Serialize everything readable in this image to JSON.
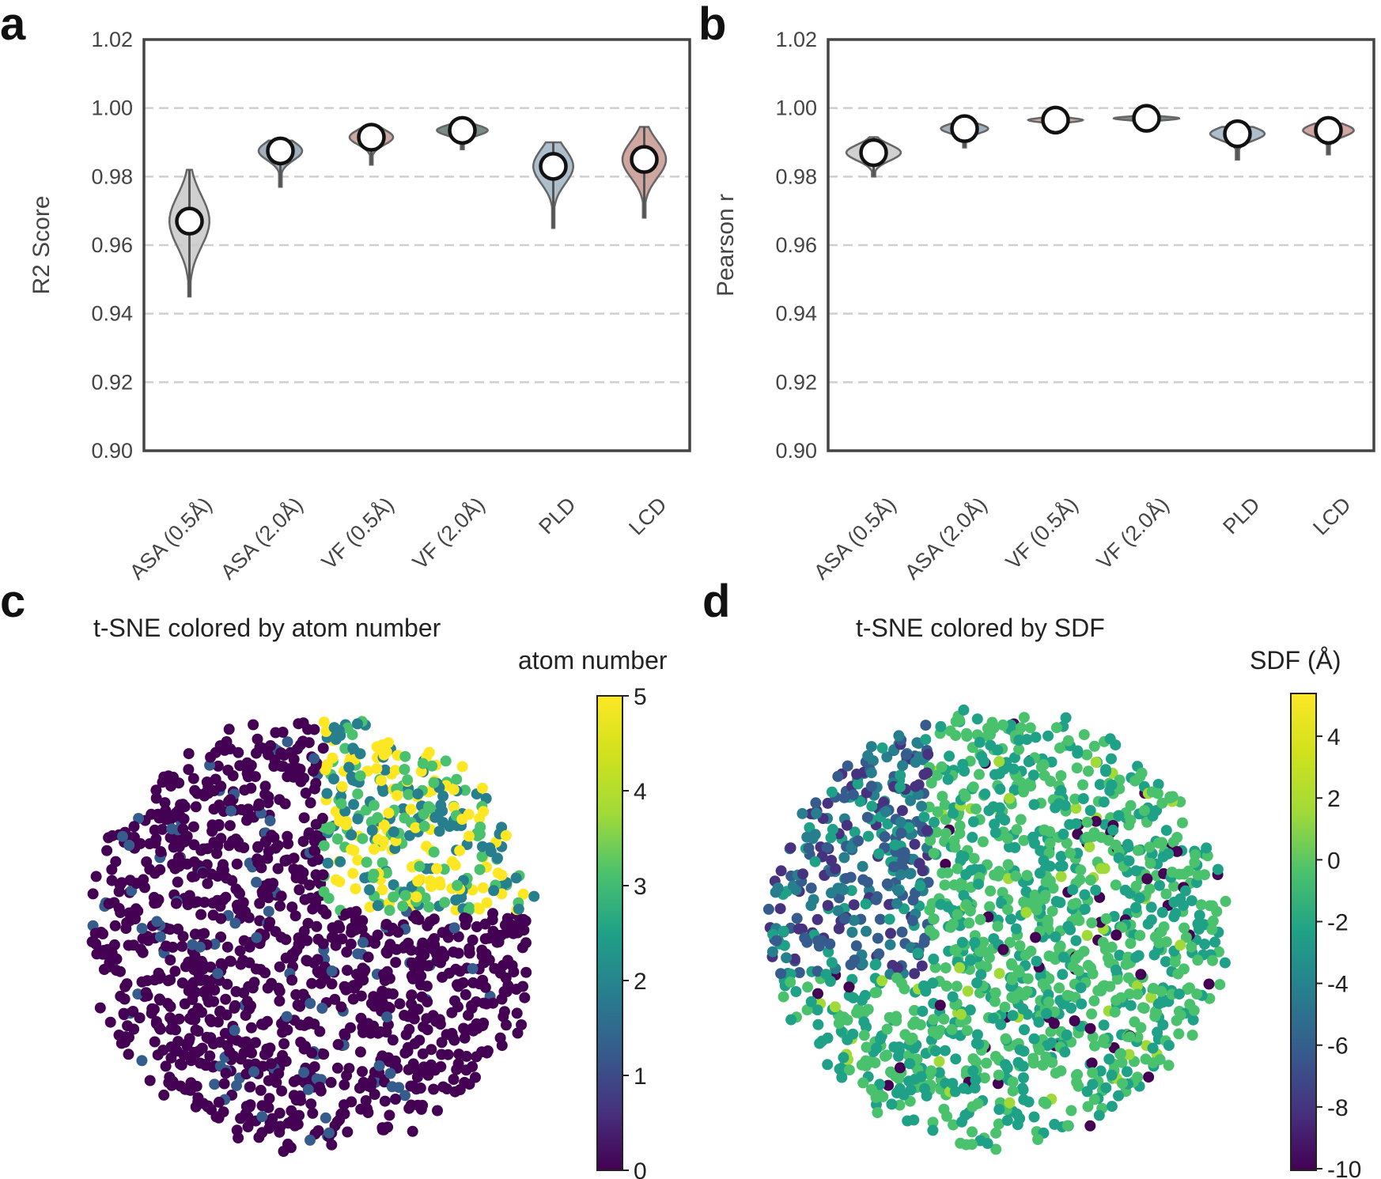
{
  "panels": {
    "a": "a",
    "b": "b",
    "c": "c",
    "d": "d"
  },
  "chart_data": [
    {
      "type": "violin",
      "panel": "a",
      "title": "",
      "xlabel": "",
      "ylabel": "R2 Score",
      "ylim": [
        0.9,
        1.02
      ],
      "yticks": [
        "0.90",
        "0.92",
        "0.94",
        "0.96",
        "0.98",
        "1.00",
        "1.02"
      ],
      "grid": "dashed horizontal",
      "categories": [
        "ASA (0.5Å)",
        "ASA (2.0Å)",
        "VF (0.5Å)",
        "VF (2.0Å)",
        "PLD",
        "LCD"
      ],
      "colors": [
        "#c8c8c8",
        "#8fa3b3",
        "#c49a94",
        "#5f7a72",
        "#9fb3c4",
        "#c8968f"
      ],
      "median": [
        0.967,
        0.9875,
        0.9915,
        0.9935,
        0.983,
        0.985
      ],
      "min": [
        0.945,
        0.977,
        0.9835,
        0.988,
        0.965,
        0.968
      ],
      "max": [
        0.982,
        0.9905,
        0.9945,
        0.9955,
        0.99,
        0.9945
      ],
      "width": [
        0.22,
        0.24,
        0.24,
        0.28,
        0.22,
        0.24
      ]
    },
    {
      "type": "violin",
      "panel": "b",
      "title": "",
      "xlabel": "",
      "ylabel": "Pearson r",
      "ylim": [
        0.9,
        1.02
      ],
      "yticks": [
        "0.90",
        "0.92",
        "0.94",
        "0.96",
        "0.98",
        "1.00",
        "1.02"
      ],
      "grid": "dashed horizontal",
      "categories": [
        "ASA (0.5Å)",
        "ASA (2.0Å)",
        "VF (0.5Å)",
        "VF (2.0Å)",
        "PLD",
        "LCD"
      ],
      "colors": [
        "#c8c8c8",
        "#8fa3b3",
        "#c49a94",
        "#5f7a72",
        "#9fb3c4",
        "#c8968f"
      ],
      "median": [
        0.987,
        0.994,
        0.9965,
        0.997,
        0.9925,
        0.9935
      ],
      "min": [
        0.98,
        0.9885,
        0.9945,
        0.9955,
        0.985,
        0.9865
      ],
      "max": [
        0.9915,
        0.9955,
        0.9975,
        0.998,
        0.9945,
        0.9955
      ],
      "width": [
        0.3,
        0.26,
        0.3,
        0.36,
        0.3,
        0.28
      ]
    },
    {
      "type": "scatter",
      "panel": "c",
      "title": "t-SNE colored by atom number",
      "colorbar_label": "atom number",
      "colorbar_range": [
        0,
        5
      ],
      "colorbar_ticks": [
        "0",
        "1",
        "2",
        "3",
        "4",
        "5"
      ],
      "colormap": "viridis"
    },
    {
      "type": "scatter",
      "panel": "d",
      "title": "t-SNE colored by SDF",
      "colorbar_label": "SDF (Å)",
      "colorbar_range": [
        -10,
        5
      ],
      "colorbar_ticks": [
        "-10",
        "-8",
        "-6",
        "-4",
        "-2",
        "0",
        "2",
        "4"
      ],
      "colormap": "viridis"
    }
  ]
}
